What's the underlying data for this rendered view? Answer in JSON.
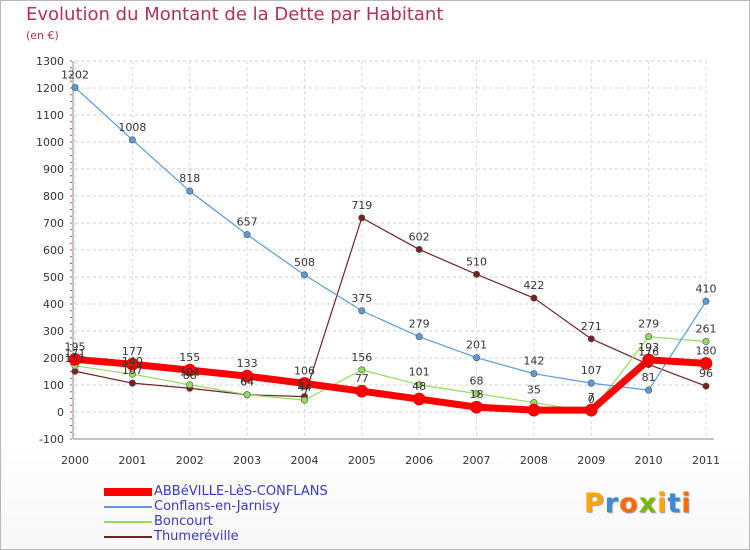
{
  "header": {
    "title": "Evolution du Montant de la Dette par Habitant",
    "unit": "(en €)"
  },
  "brand": {
    "text": "Proxiti",
    "letter_colors": [
      "#ffa500",
      "#3c8ad6",
      "#ff6a00",
      "#7ab800",
      "#ffa500",
      "#3c8ad6",
      "#ff6a00"
    ]
  },
  "chart_data": {
    "type": "line",
    "title": "Evolution du Montant de la Dette par Habitant",
    "subtitle": "(en €)",
    "xlabel": "",
    "ylabel": "",
    "x": [
      "2000",
      "2001",
      "2002",
      "2003",
      "2004",
      "2005",
      "2006",
      "2007",
      "2008",
      "2009",
      "2010",
      "2011"
    ],
    "ylim": [
      -100,
      1300
    ],
    "yticks": [
      -100,
      0,
      100,
      200,
      300,
      400,
      500,
      600,
      700,
      800,
      900,
      1000,
      1100,
      1200,
      1300
    ],
    "grid": "horizontal dashed",
    "legend_position": "bottom-left",
    "series": [
      {
        "name": "Thumeréville",
        "color": "#722424",
        "width": 1.2,
        "values": [
          151,
          107,
          88,
          64,
          57,
          719,
          602,
          510,
          422,
          271,
          176,
          96
        ]
      },
      {
        "name": "Boncourt",
        "color": "#92dc5e",
        "width": 1.2,
        "values": [
          171,
          140,
          101,
          64,
          44,
          156,
          101,
          68,
          35,
          0,
          279,
          261
        ]
      },
      {
        "name": "Conflans-en-Jarnisy",
        "color": "#5a9bd8",
        "width": 1.2,
        "values": [
          1202,
          1008,
          818,
          657,
          508,
          375,
          279,
          201,
          142,
          107,
          81,
          410
        ]
      },
      {
        "name": "ABBéVILLE-LèS-CONFLANS",
        "color": "#ff0000",
        "width": 7,
        "values": [
          195,
          177,
          155,
          133,
          106,
          77,
          48,
          18,
          7,
          7,
          193,
          180
        ]
      }
    ],
    "data_labels": [
      {
        "series": "ABBéVILLE-LèS-CONFLANS",
        "labels": [
          "195",
          "177",
          "155",
          "133",
          "106",
          "77",
          "48",
          "18",
          "",
          "7",
          "193",
          "180"
        ]
      },
      {
        "series": "Conflans-en-Jarnisy",
        "labels": [
          "1202",
          "1008",
          "818",
          "657",
          "508",
          "375",
          "279",
          "201",
          "142",
          "107",
          "81",
          "410"
        ]
      },
      {
        "series": "Boncourt",
        "labels": [
          "171",
          "140",
          "101",
          "64",
          "44",
          "156",
          "101",
          "68",
          "35",
          "0",
          "279",
          "261"
        ]
      },
      {
        "series": "Thumeréville",
        "labels": [
          "151",
          "107",
          "88",
          "64",
          "57",
          "719",
          "602",
          "510",
          "422",
          "271",
          "176",
          "96"
        ]
      }
    ],
    "legend": [
      "ABBéVILLE-LèS-CONFLANS",
      "Conflans-en-Jarnisy",
      "Boncourt",
      "Thumeréville"
    ]
  }
}
